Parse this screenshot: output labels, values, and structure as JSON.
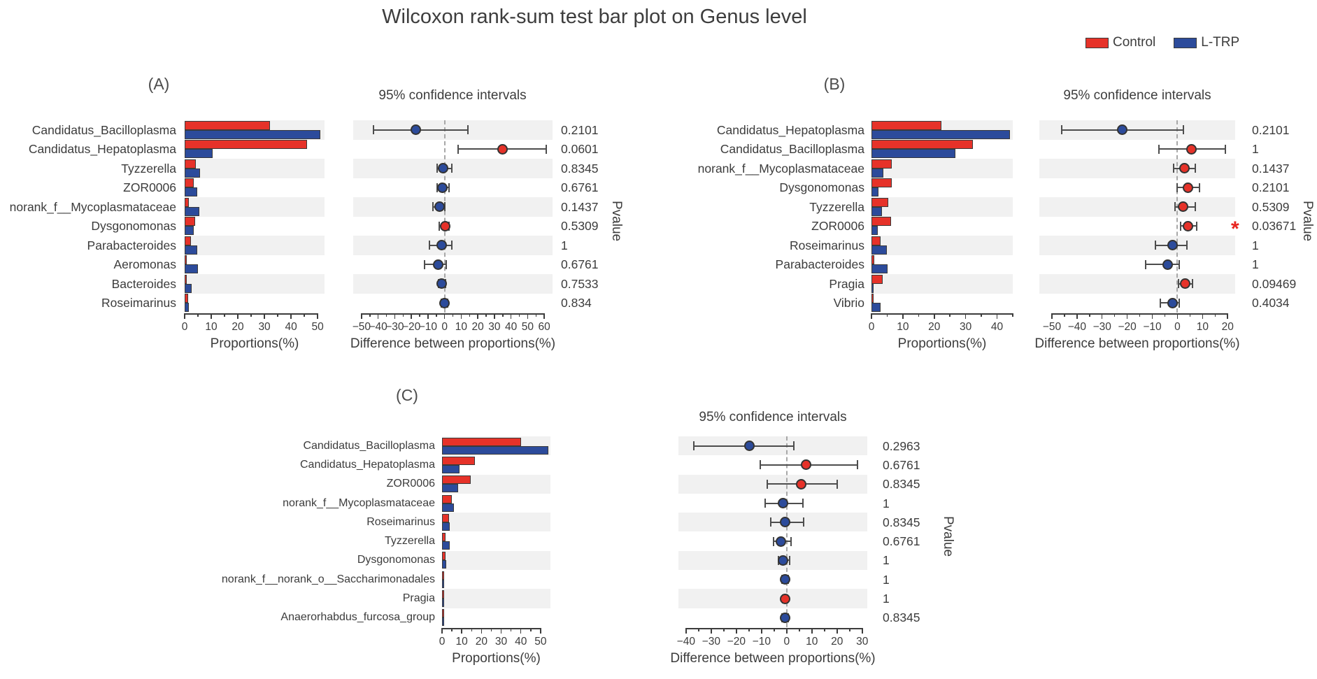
{
  "figure": {
    "title": "Wilcoxon rank-sum test bar plot on Genus level",
    "legend": [
      {
        "label": "Control",
        "color": "#e63229"
      },
      {
        "label": "L-TRP",
        "color": "#2c4b9b"
      }
    ]
  },
  "colors": {
    "control": "#e63229",
    "ltrp": "#2c4b9b",
    "stripe": "#f1f1f1",
    "text": "#3c3c3c",
    "errbar": "#4d4d4d",
    "sig": "#e8251f"
  },
  "chart_data": [
    {
      "id": "A",
      "type": "bar+ci",
      "panel_label": "(A)",
      "ci_title": "95% confidence intervals",
      "bar_xlabel": "Proportions(%)",
      "ci_xlabel": "Difference between proportions(%)",
      "pvalue_axis_label": "Pvalue",
      "series": [
        "Control",
        "L-TRP"
      ],
      "bar_axis": {
        "min": 0,
        "max": 52.6,
        "tick_start": 0,
        "tick_end": 50,
        "minor_step": 5,
        "major_ticks": [
          0,
          10,
          20,
          30,
          40,
          50
        ]
      },
      "ci_axis": {
        "min": -55,
        "max": 65,
        "tick_start": -50,
        "tick_end": 60,
        "minor_step": 5,
        "major_ticks": [
          -50,
          -40,
          -30,
          -20,
          -10,
          0,
          10,
          20,
          30,
          40,
          50,
          60
        ]
      },
      "rows": [
        {
          "genus": "Candidatus_Bacilloplasma",
          "control": 32,
          "ltrp": 51,
          "diff": -17.5,
          "ci_low": -43,
          "ci_high": 14,
          "dot_color": "ltrp",
          "pvalue": "0.2101",
          "significant": false
        },
        {
          "genus": "Candidatus_Hepatoplasma",
          "control": 46,
          "ltrp": 10.5,
          "diff": 35,
          "ci_low": 8,
          "ci_high": 61,
          "dot_color": "control",
          "pvalue": "0.0601",
          "significant": false
        },
        {
          "genus": "Tyzzerella",
          "control": 4.3,
          "ltrp": 5.9,
          "diff": -1,
          "ci_low": -4.5,
          "ci_high": 4.5,
          "dot_color": "ltrp",
          "pvalue": "0.8345",
          "significant": false
        },
        {
          "genus": "ZOR0006",
          "control": 3.5,
          "ltrp": 4.8,
          "diff": -1.2,
          "ci_low": -4.3,
          "ci_high": 2.6,
          "dot_color": "ltrp",
          "pvalue": "0.6761",
          "significant": false
        },
        {
          "genus": "norank_f__Mycoplasmataceae",
          "control": 1.7,
          "ltrp": 5.5,
          "diff": -3.2,
          "ci_low": -6.8,
          "ci_high": 0.3,
          "dot_color": "ltrp",
          "pvalue": "0.1437",
          "significant": false
        },
        {
          "genus": "Dysgonomonas",
          "control": 3.9,
          "ltrp": 3.5,
          "diff": 0.4,
          "ci_low": -3.2,
          "ci_high": 2.6,
          "dot_color": "control",
          "pvalue": "0.5309",
          "significant": false
        },
        {
          "genus": "Parabacteroides",
          "control": 2.4,
          "ltrp": 4.8,
          "diff": -1.7,
          "ci_low": -9.3,
          "ci_high": 4.5,
          "dot_color": "ltrp",
          "pvalue": "1",
          "significant": false
        },
        {
          "genus": "Aeromonas",
          "control": 0.4,
          "ltrp": 5,
          "diff": -3.9,
          "ci_low": -12.2,
          "ci_high": 0.9,
          "dot_color": "ltrp",
          "pvalue": "0.6761",
          "significant": false
        },
        {
          "genus": "Bacteroides",
          "control": 0.4,
          "ltrp": 2.6,
          "diff": -1.7,
          "ci_low": -3.8,
          "ci_high": 0.4,
          "dot_color": "ltrp",
          "pvalue": "0.7533",
          "significant": false
        },
        {
          "genus": "Roseimarinus",
          "control": 1.2,
          "ltrp": 1.7,
          "diff": -0.1,
          "ci_low": -2,
          "ci_high": 1.9,
          "dot_color": "ltrp",
          "pvalue": "0.834",
          "significant": false
        }
      ]
    },
    {
      "id": "B",
      "type": "bar+ci",
      "panel_label": "(B)",
      "ci_title": "95% confidence intervals",
      "bar_xlabel": "Proportions(%)",
      "ci_xlabel": "Difference between proportions(%)",
      "pvalue_axis_label": "Pvalue",
      "series": [
        "Control",
        "L-TRP"
      ],
      "bar_axis": {
        "min": 0,
        "max": 45,
        "tick_start": 0,
        "tick_end": 45,
        "minor_step": 5,
        "major_ticks": [
          0,
          10,
          20,
          30,
          40
        ]
      },
      "ci_axis": {
        "min": -55,
        "max": 23,
        "tick_start": -50,
        "tick_end": 20,
        "minor_step": 5,
        "major_ticks": [
          -50,
          -40,
          -30,
          -20,
          -10,
          0,
          10,
          20
        ]
      },
      "rows": [
        {
          "genus": "Candidatus_Hepatoplasma",
          "control": 22.3,
          "ltrp": 44,
          "diff": -22,
          "ci_low": -46,
          "ci_high": 2.5,
          "dot_color": "ltrp",
          "pvalue": "0.2101",
          "significant": false
        },
        {
          "genus": "Candidatus_Bacilloplasma",
          "control": 32.3,
          "ltrp": 26.7,
          "diff": 5.6,
          "ci_low": -7.4,
          "ci_high": 19,
          "dot_color": "control",
          "pvalue": "1",
          "significant": false
        },
        {
          "genus": "norank_f__Mycoplasmataceae",
          "control": 6.4,
          "ltrp": 3.8,
          "diff": 2.7,
          "ci_low": -1.4,
          "ci_high": 7,
          "dot_color": "control",
          "pvalue": "0.1437",
          "significant": false
        },
        {
          "genus": "Dysgonomonas",
          "control": 6.5,
          "ltrp": 2.3,
          "diff": 4.2,
          "ci_low": 0,
          "ci_high": 8.7,
          "dot_color": "control",
          "pvalue": "0.2101",
          "significant": false
        },
        {
          "genus": "Tyzzerella",
          "control": 5.4,
          "ltrp": 3.3,
          "diff": 2.2,
          "ci_low": -1,
          "ci_high": 7,
          "dot_color": "control",
          "pvalue": "0.5309",
          "significant": false
        },
        {
          "genus": "ZOR0006",
          "control": 6.3,
          "ltrp": 1.9,
          "diff": 4.3,
          "ci_low": 1.4,
          "ci_high": 7.6,
          "dot_color": "control",
          "pvalue": "0.03671",
          "significant": true
        },
        {
          "genus": "Roseimarinus",
          "control": 2.9,
          "ltrp": 5,
          "diff": -2,
          "ci_low": -8.8,
          "ci_high": 3.8,
          "dot_color": "ltrp",
          "pvalue": "1",
          "significant": false
        },
        {
          "genus": "Parabacteroides",
          "control": 0.8,
          "ltrp": 5.2,
          "diff": -3.8,
          "ci_low": -12.6,
          "ci_high": 0.8,
          "dot_color": "ltrp",
          "pvalue": "1",
          "significant": false
        },
        {
          "genus": "Pragia",
          "control": 3.5,
          "ltrp": 0.4,
          "diff": 3,
          "ci_low": 0.3,
          "ci_high": 6,
          "dot_color": "control",
          "pvalue": "0.09469",
          "significant": false
        },
        {
          "genus": "Vibrio",
          "control": 0.5,
          "ltrp": 2.8,
          "diff": -2,
          "ci_low": -6.8,
          "ci_high": 0.8,
          "dot_color": "ltrp",
          "pvalue": "0.4034",
          "significant": false
        }
      ]
    },
    {
      "id": "C",
      "type": "bar+ci",
      "panel_label": "(C)",
      "ci_title": "95% confidence intervals",
      "bar_xlabel": "Proportions(%)",
      "ci_xlabel": "Difference between proportions(%)",
      "pvalue_axis_label": "Pvalue",
      "series": [
        "Control",
        "L-TRP"
      ],
      "bar_axis": {
        "min": 0,
        "max": 55,
        "tick_start": 0,
        "tick_end": 50,
        "minor_step": 5,
        "major_ticks": [
          0,
          10,
          20,
          30,
          40,
          50
        ]
      },
      "ci_axis": {
        "min": -43,
        "max": 32,
        "tick_start": -40,
        "tick_end": 30,
        "minor_step": 5,
        "major_ticks": [
          -40,
          -30,
          -20,
          -10,
          0,
          10,
          20,
          30
        ]
      },
      "rows": [
        {
          "genus": "Candidatus_Bacilloplasma",
          "control": 40,
          "ltrp": 54,
          "diff": -14.7,
          "ci_low": -37,
          "ci_high": 2.8,
          "dot_color": "ltrp",
          "pvalue": "0.2963",
          "significant": false
        },
        {
          "genus": "Candidatus_Hepatoplasma",
          "control": 16.8,
          "ltrp": 8.9,
          "diff": 7.8,
          "ci_low": -10.5,
          "ci_high": 28,
          "dot_color": "control",
          "pvalue": "0.6761",
          "significant": false
        },
        {
          "genus": "ZOR0006",
          "control": 14.6,
          "ltrp": 8.2,
          "diff": 5.8,
          "ci_low": -7.8,
          "ci_high": 20,
          "dot_color": "control",
          "pvalue": "0.8345",
          "significant": false
        },
        {
          "genus": "norank_f__Mycoplasmataceae",
          "control": 5,
          "ltrp": 6,
          "diff": -1.4,
          "ci_low": -8.6,
          "ci_high": 6.4,
          "dot_color": "ltrp",
          "pvalue": "1",
          "significant": false
        },
        {
          "genus": "Roseimarinus",
          "control": 3.6,
          "ltrp": 3.9,
          "diff": -0.6,
          "ci_low": -6.4,
          "ci_high": 6.6,
          "dot_color": "ltrp",
          "pvalue": "0.8345",
          "significant": false
        },
        {
          "genus": "Tyzzerella",
          "control": 1.8,
          "ltrp": 4,
          "diff": -2.2,
          "ci_low": -5.3,
          "ci_high": 1.7,
          "dot_color": "ltrp",
          "pvalue": "0.6761",
          "significant": false
        },
        {
          "genus": "Dysgonomonas",
          "control": 1.8,
          "ltrp": 2.3,
          "diff": -1.4,
          "ci_low": -3.3,
          "ci_high": 1.1,
          "dot_color": "ltrp",
          "pvalue": "1",
          "significant": false
        },
        {
          "genus": "norank_f__norank_o__Saccharimonadales",
          "control": 0.8,
          "ltrp": 0.8,
          "diff": -0.6,
          "ci_low": -2,
          "ci_high": 0.5,
          "dot_color": "ltrp",
          "pvalue": "1",
          "significant": false
        },
        {
          "genus": "Pragia",
          "control": 0.6,
          "ltrp": 0.6,
          "diff": -0.6,
          "ci_low": -1.6,
          "ci_high": 0.3,
          "dot_color": "control",
          "pvalue": "1",
          "significant": false
        },
        {
          "genus": "Anaerorhabdus_furcosa_group",
          "control": 0.6,
          "ltrp": 0.7,
          "diff": -0.6,
          "ci_low": -1.8,
          "ci_high": 0.5,
          "dot_color": "ltrp",
          "pvalue": "0.8345",
          "significant": false
        }
      ]
    }
  ]
}
